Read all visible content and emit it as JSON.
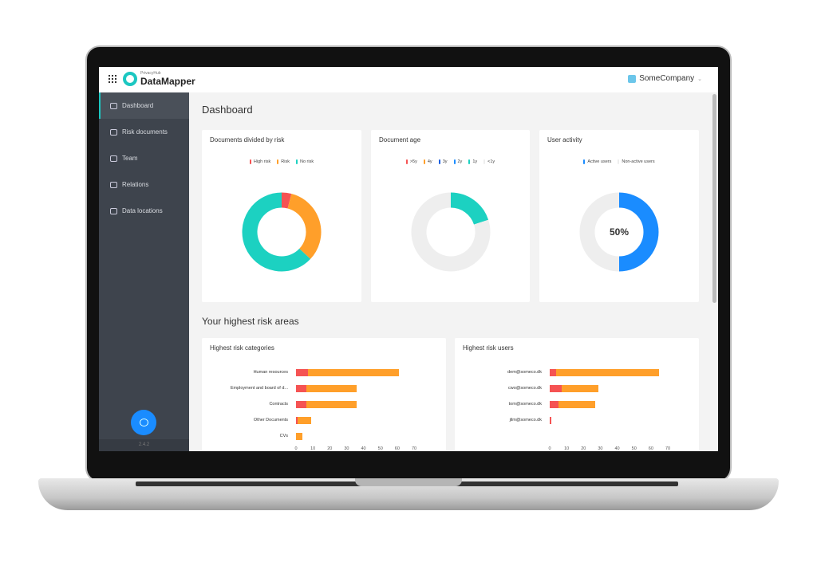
{
  "header": {
    "brand_small": "PrivacyHub",
    "brand": "DataMapper",
    "company": "SomeCompany"
  },
  "sidebar": {
    "items": [
      {
        "label": "Dashboard",
        "icon": "gauge-icon",
        "active": true
      },
      {
        "label": "Risk documents",
        "icon": "document-risk-icon"
      },
      {
        "label": "Team",
        "icon": "team-icon"
      },
      {
        "label": "Relations",
        "icon": "relations-icon"
      },
      {
        "label": "Data locations",
        "icon": "folder-icon"
      }
    ],
    "version": "2.4.2"
  },
  "main": {
    "title": "Dashboard",
    "section_title": "Your highest risk areas"
  },
  "colors": {
    "high_risk": "#f55353",
    "risk": "#ff9f2a",
    "no_risk": "#1cd1c1",
    "active": "#1a8cff",
    "inactive": "#eeeeee",
    "accent": "#1cc7c1"
  },
  "chart_data": [
    {
      "type": "pie",
      "title": "Documents divided by risk",
      "donut": true,
      "categories": [
        "High risk",
        "Risk",
        "No risk"
      ],
      "values": [
        4,
        33,
        63
      ],
      "colors": [
        "#f55353",
        "#ff9f2a",
        "#1cd1c1"
      ],
      "legend": "top"
    },
    {
      "type": "pie",
      "title": "Document age",
      "donut": true,
      "categories": [
        ">5y",
        "4y",
        "3y",
        "2y",
        "1y",
        "<1y"
      ],
      "values": [
        0,
        0,
        0,
        0,
        20,
        80
      ],
      "colors": [
        "#f55353",
        "#ff9f2a",
        "#1a5ee0",
        "#1a8cff",
        "#1cd1c1",
        "#eeeeee"
      ],
      "legend": "top"
    },
    {
      "type": "pie",
      "title": "User activity",
      "donut": true,
      "categories": [
        "Active users",
        "Non-active users"
      ],
      "values": [
        50,
        50
      ],
      "colors": [
        "#1a8cff",
        "#eeeeee"
      ],
      "center_label": "50%",
      "legend": "top"
    },
    {
      "type": "bar",
      "orientation": "horizontal",
      "stacked": true,
      "title": "Highest risk categories",
      "categories": [
        "Human resources",
        "Employment and board of d...",
        "Contracts",
        "Other Documents",
        "CVs"
      ],
      "series": [
        {
          "values": [
            7,
            6,
            6,
            1,
            0
          ],
          "color": "#f55353"
        },
        {
          "values": [
            54,
            30,
            30,
            8,
            4
          ],
          "color": "#ff9f2a"
        }
      ],
      "xlim": [
        0,
        70
      ],
      "xticks": [
        "0",
        "10",
        "20",
        "30",
        "40",
        "50",
        "60",
        "70"
      ]
    },
    {
      "type": "bar",
      "orientation": "horizontal",
      "stacked": true,
      "title": "Highest risk users",
      "categories": [
        "dem@someco.dk",
        "cwo@someco.dk",
        "tom@someco.dk",
        "jilm@someco.dk"
      ],
      "series": [
        {
          "values": [
            4,
            7,
            5,
            1
          ],
          "color": "#f55353"
        },
        {
          "values": [
            61,
            22,
            22,
            0
          ],
          "color": "#ff9f2a"
        }
      ],
      "xlim": [
        0,
        70
      ],
      "xticks": [
        "0",
        "10",
        "20",
        "30",
        "40",
        "50",
        "60",
        "70"
      ]
    }
  ]
}
